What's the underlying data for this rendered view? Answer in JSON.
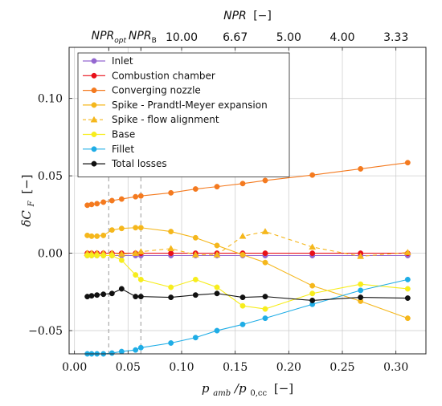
{
  "chart_data": {
    "type": "line",
    "xlabel_main": "p",
    "xlabel_sub1": "amb",
    "xlabel_slash": "/p",
    "xlabel_sub2": "0,cc",
    "xlabel_unit": "[−]",
    "ylabel": "δC_F [−]",
    "ylabel_main": "δC",
    "ylabel_sub": "F",
    "ylabel_unit": "[−]",
    "top_label": "NPR [−]",
    "top_label_main": "NPR",
    "top_label_unit": "[−]",
    "xlim": [
      -0.005,
      0.328
    ],
    "ylim": [
      -0.065,
      0.133
    ],
    "x_ticks": [
      0.0,
      0.05,
      0.1,
      0.15,
      0.2,
      0.25,
      0.3
    ],
    "x_tick_labels": [
      "0.00",
      "0.05",
      "0.10",
      "0.15",
      "0.20",
      "0.25",
      "0.30"
    ],
    "y_ticks": [
      -0.05,
      0.0,
      0.05,
      0.1
    ],
    "y_tick_labels": [
      "−0.05",
      "0.00",
      "0.05",
      "0.10"
    ],
    "top_ticks": [
      {
        "x": 0.1,
        "label": "10.00"
      },
      {
        "x": 0.15,
        "label": "6.67"
      },
      {
        "x": 0.2,
        "label": "5.00"
      },
      {
        "x": 0.25,
        "label": "4.00"
      },
      {
        "x": 0.3,
        "label": "3.33"
      }
    ],
    "reference_lines": [
      {
        "x": 0.032,
        "label_main": "NPR",
        "label_sub": "opt"
      },
      {
        "x": 0.062,
        "label_main": "NPR",
        "label_sub": "B"
      }
    ],
    "grid": true,
    "legend_position": "top-left",
    "series": [
      {
        "name": "Inlet",
        "color": "#9467d0",
        "marker": "circle",
        "dashed": false,
        "x": [
          0.012,
          0.016,
          0.021,
          0.027,
          0.035,
          0.044,
          0.057,
          0.062,
          0.09,
          0.113,
          0.133,
          0.157,
          0.178,
          0.222,
          0.267,
          0.311
        ],
        "y": [
          -0.0015,
          -0.0015,
          -0.0015,
          -0.0015,
          -0.0015,
          -0.0015,
          -0.0015,
          -0.0015,
          -0.0015,
          -0.0015,
          -0.0015,
          -0.0015,
          -0.0015,
          -0.0015,
          -0.0015,
          -0.0015
        ]
      },
      {
        "name": "Combustion chamber",
        "color": "#e8101a",
        "marker": "circle",
        "dashed": false,
        "x": [
          0.012,
          0.016,
          0.021,
          0.027,
          0.035,
          0.044,
          0.057,
          0.062,
          0.09,
          0.113,
          0.133,
          0.157,
          0.178,
          0.222,
          0.267,
          0.311
        ],
        "y": [
          0.0,
          0.0,
          0.0,
          0.0,
          0.0,
          0.0,
          0.0,
          0.0,
          0.0,
          0.0,
          0.0,
          0.0,
          0.0,
          0.0,
          0.0,
          0.0
        ]
      },
      {
        "name": "Converging nozzle",
        "color": "#f47a1f",
        "marker": "circle",
        "dashed": false,
        "x": [
          0.012,
          0.016,
          0.021,
          0.027,
          0.035,
          0.044,
          0.057,
          0.062,
          0.09,
          0.113,
          0.133,
          0.157,
          0.178,
          0.222,
          0.267,
          0.311
        ],
        "y": [
          0.031,
          0.0315,
          0.032,
          0.033,
          0.034,
          0.035,
          0.0365,
          0.037,
          0.039,
          0.0415,
          0.043,
          0.045,
          0.047,
          0.0505,
          0.0545,
          0.0585
        ]
      },
      {
        "name": "Spike - Prandtl-Meyer expansion",
        "color": "#f5b71c",
        "marker": "circle",
        "dashed": false,
        "x": [
          0.012,
          0.016,
          0.021,
          0.027,
          0.035,
          0.044,
          0.057,
          0.062,
          0.09,
          0.113,
          0.133,
          0.157,
          0.178,
          0.222,
          0.267,
          0.311
        ],
        "y": [
          0.0115,
          0.011,
          0.011,
          0.0115,
          0.015,
          0.016,
          0.0165,
          0.0165,
          0.014,
          0.01,
          0.005,
          -0.001,
          -0.006,
          -0.021,
          -0.031,
          -0.042
        ]
      },
      {
        "name": "Spike - flow alignment",
        "color": "#f5b71c",
        "marker": "triangle",
        "dashed": true,
        "x": [
          0.012,
          0.016,
          0.021,
          0.027,
          0.035,
          0.044,
          0.057,
          0.062,
          0.09,
          0.113,
          0.133,
          0.157,
          0.178,
          0.222,
          0.267,
          0.311
        ],
        "y": [
          0.0,
          0.0,
          0.0,
          0.0,
          0.0,
          -0.0005,
          0.0,
          0.001,
          0.003,
          -0.001,
          -0.001,
          0.011,
          0.014,
          0.004,
          -0.002,
          0.0005
        ]
      },
      {
        "name": "Base",
        "color": "#f7ed1c",
        "marker": "circle",
        "dashed": false,
        "x": [
          0.012,
          0.016,
          0.021,
          0.027,
          0.035,
          0.044,
          0.057,
          0.062,
          0.09,
          0.113,
          0.133,
          0.157,
          0.178,
          0.222,
          0.267,
          0.311
        ],
        "y": [
          -0.0015,
          -0.0015,
          -0.0015,
          -0.0015,
          -0.0015,
          -0.0045,
          -0.014,
          -0.017,
          -0.022,
          -0.017,
          -0.022,
          -0.034,
          -0.036,
          -0.026,
          -0.02,
          -0.023
        ]
      },
      {
        "name": "Fillet",
        "color": "#1fade6",
        "marker": "circle",
        "dashed": false,
        "x": [
          0.012,
          0.016,
          0.021,
          0.027,
          0.035,
          0.044,
          0.057,
          0.062,
          0.09,
          0.113,
          0.133,
          0.157,
          0.178,
          0.222,
          0.267,
          0.311
        ],
        "y": [
          -0.065,
          -0.065,
          -0.065,
          -0.065,
          -0.0645,
          -0.0635,
          -0.0625,
          -0.061,
          -0.058,
          -0.0545,
          -0.05,
          -0.046,
          -0.042,
          -0.033,
          -0.024,
          -0.017
        ]
      },
      {
        "name": "Total losses",
        "color": "#111111",
        "marker": "circle",
        "dashed": false,
        "x": [
          0.012,
          0.016,
          0.021,
          0.027,
          0.035,
          0.044,
          0.057,
          0.062,
          0.09,
          0.113,
          0.133,
          0.157,
          0.178,
          0.222,
          0.267,
          0.311
        ],
        "y": [
          -0.028,
          -0.0275,
          -0.027,
          -0.0265,
          -0.026,
          -0.023,
          -0.028,
          -0.028,
          -0.0285,
          -0.027,
          -0.026,
          -0.0285,
          -0.028,
          -0.0305,
          -0.0285,
          -0.029
        ]
      }
    ]
  }
}
